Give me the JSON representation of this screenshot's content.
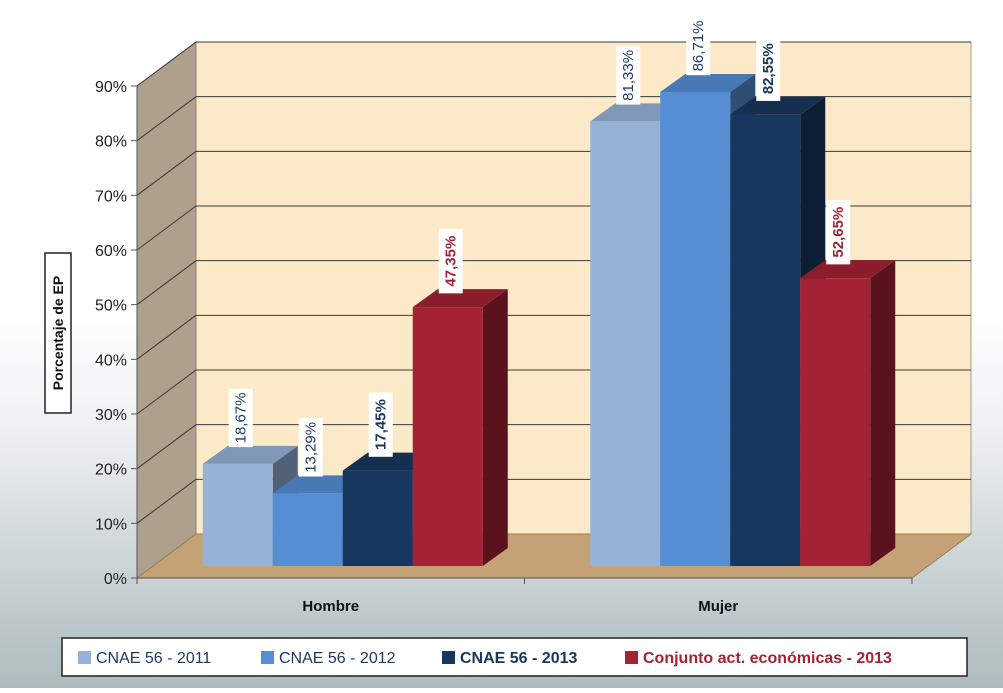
{
  "chart_data": {
    "type": "bar",
    "bar_style": "3d",
    "categories": [
      "Hombre",
      "Mujer"
    ],
    "series": [
      {
        "name": "CNAE 56 - 2011",
        "values": [
          18.67,
          81.33
        ],
        "labels": [
          "18,67%",
          "81,33%"
        ],
        "color": "#95b3d7",
        "label_color": "#1f3864",
        "bold": false
      },
      {
        "name": "CNAE 56 - 2012",
        "values": [
          13.29,
          86.71
        ],
        "labels": [
          "13,29%",
          "86,71%"
        ],
        "color": "#558ed5",
        "label_color": "#1f3864",
        "bold": false
      },
      {
        "name": "CNAE 56 - 2013",
        "values": [
          17.45,
          82.55
        ],
        "labels": [
          "17,45%",
          "82,55%"
        ],
        "color": "#17375e",
        "label_color": "#17375e",
        "bold": true
      },
      {
        "name": "Conjunto act. económicas - 2013",
        "values": [
          47.35,
          52.65
        ],
        "labels": [
          "47,35%",
          "52,65%"
        ],
        "color": "#a32235",
        "label_color": "#a32235",
        "bold": true
      }
    ],
    "ylabel": "Porcentaje de EP",
    "ylim": [
      0,
      90
    ],
    "yticks": [
      "0%",
      "10%",
      "20%",
      "30%",
      "40%",
      "50%",
      "60%",
      "70%",
      "80%",
      "90%"
    ],
    "grid": true,
    "legend_position": "bottom",
    "colors": {
      "wall": "#fce9c7",
      "floor": "#c4a276",
      "side_wall": "#aea08c"
    }
  }
}
